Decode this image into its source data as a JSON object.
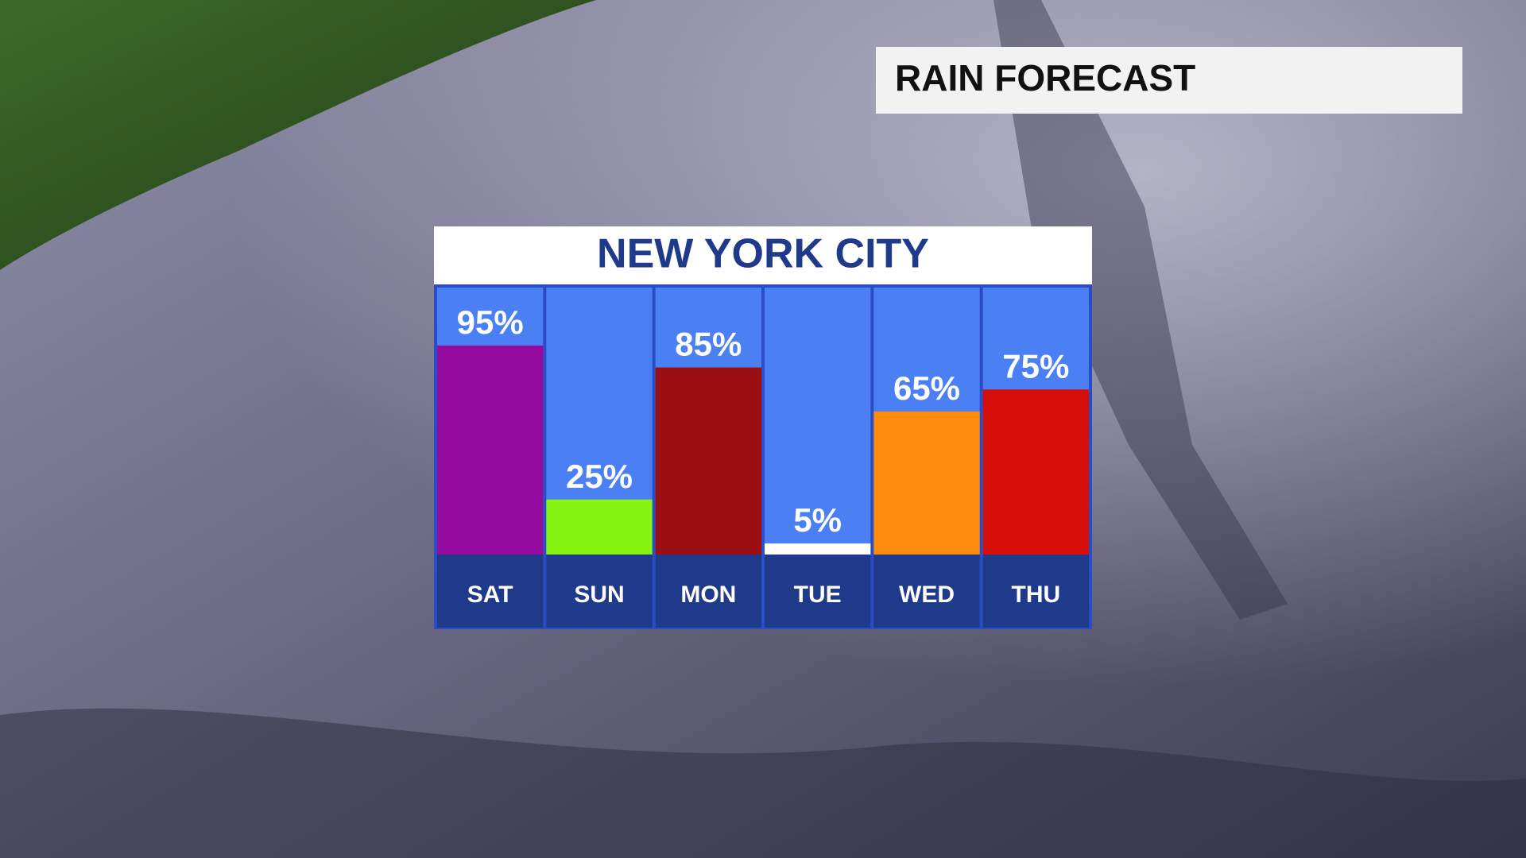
{
  "header": {
    "title": "RAIN FORECAST"
  },
  "chart_data": {
    "type": "bar",
    "title": "NEW YORK CITY",
    "categories": [
      "SAT",
      "SUN",
      "MON",
      "TUE",
      "WED",
      "THU"
    ],
    "values": [
      95,
      25,
      85,
      5,
      65,
      75
    ],
    "value_labels": [
      "95%",
      "25%",
      "85%",
      "5%",
      "65%",
      "75%"
    ],
    "colors": [
      "#960b9f",
      "#86f412",
      "#9b0f12",
      "#ffffff",
      "#ff8a0c",
      "#d80e0b"
    ]
  }
}
